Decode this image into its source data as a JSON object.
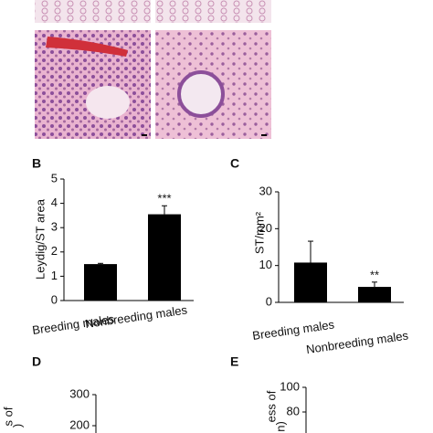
{
  "chart_data": [
    {
      "type": "bar",
      "panel": "B",
      "y_label": [
        "Leydig/ST area"
      ],
      "categories": [
        "Breeding males",
        "Nonbreeding males"
      ],
      "values": [
        1.5,
        3.55
      ],
      "errors": [
        0.03,
        0.35
      ],
      "annotations": [
        null,
        "***"
      ],
      "color": "#000000",
      "ylim": [
        0,
        5
      ],
      "yticks": [
        0,
        1,
        2,
        3,
        4,
        5
      ]
    },
    {
      "type": "bar",
      "panel": "C",
      "y_label": [
        "ST/mm²"
      ],
      "categories": [
        "Breeding males",
        "Nonbreeding males"
      ],
      "values": [
        10.8,
        4.2
      ],
      "errors": [
        5.8,
        1.3
      ],
      "annotations": [
        null,
        "**"
      ],
      "color": "#000000",
      "ylim": [
        0,
        30
      ],
      "yticks": [
        0,
        10,
        20,
        30
      ]
    },
    {
      "type": "bar",
      "panel": "D",
      "y_label": [
        "s of",
        ")"
      ],
      "categories": [],
      "values": [],
      "color": "#000000",
      "ylim": [
        0,
        300
      ],
      "yticks": [
        200,
        300
      ]
    },
    {
      "type": "bar",
      "panel": "E",
      "y_label": [
        "ess of",
        "n)"
      ],
      "categories": [],
      "values": [],
      "color": "#000000",
      "ylim": [
        0,
        100
      ],
      "yticks": [
        80,
        100
      ]
    }
  ]
}
